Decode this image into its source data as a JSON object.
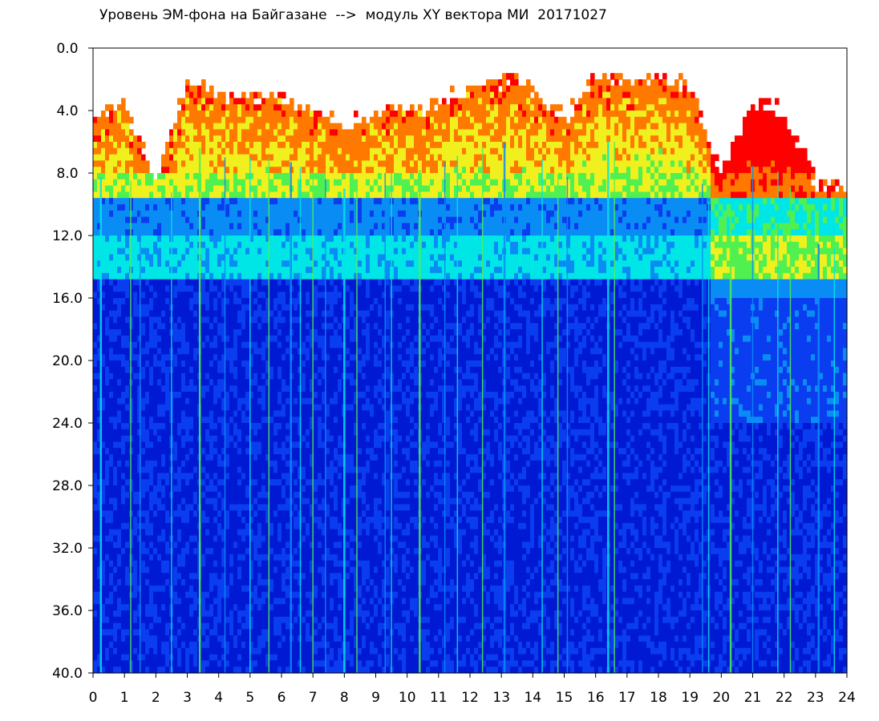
{
  "chart_data": {
    "type": "heatmap",
    "title": "Уровень ЭМ-фона на Байгазане  -->  модуль XY вектора МИ  20171027",
    "xlabel": "",
    "ylabel": "",
    "x_ticks": [
      "0",
      "1",
      "2",
      "3",
      "4",
      "5",
      "6",
      "7",
      "8",
      "9",
      "10",
      "11",
      "12",
      "13",
      "14",
      "15",
      "16",
      "17",
      "18",
      "19",
      "20",
      "21",
      "22",
      "23",
      "24"
    ],
    "y_ticks": [
      "0.0",
      "4.0",
      "8.0",
      "12.0",
      "16.0",
      "20.0",
      "24.0",
      "28.0",
      "32.0",
      "36.0",
      "40.0"
    ],
    "xlim": [
      0,
      24
    ],
    "ylim": [
      0,
      40
    ],
    "y_axis_inverted": true,
    "grid": false,
    "colormap": [
      "#0019d2",
      "#0a3cf0",
      "#0a8cf5",
      "#00e6e6",
      "#50f050",
      "#f0f01e",
      "#ff7800",
      "#ff0000"
    ],
    "upper_edge_by_hour": [
      {
        "x": 0,
        "y": 4.5
      },
      {
        "x": 1,
        "y": 3.5
      },
      {
        "x": 2,
        "y": 8.5
      },
      {
        "x": 3,
        "y": 2.0
      },
      {
        "x": 4,
        "y": 3.0
      },
      {
        "x": 5,
        "y": 3.0
      },
      {
        "x": 6,
        "y": 3.0
      },
      {
        "x": 7,
        "y": 4.0
      },
      {
        "x": 8,
        "y": 5.0
      },
      {
        "x": 9,
        "y": 4.0
      },
      {
        "x": 10,
        "y": 4.0
      },
      {
        "x": 11,
        "y": 3.5
      },
      {
        "x": 12,
        "y": 2.5
      },
      {
        "x": 13,
        "y": 2.0
      },
      {
        "x": 14,
        "y": 2.5
      },
      {
        "x": 15,
        "y": 4.5
      },
      {
        "x": 16,
        "y": 2.0
      },
      {
        "x": 17,
        "y": 2.0
      },
      {
        "x": 18,
        "y": 2.0
      },
      {
        "x": 19,
        "y": 2.5
      },
      {
        "x": 20,
        "y": 8.0
      },
      {
        "x": 21,
        "y": 3.5
      },
      {
        "x": 22,
        "y": 4.0
      },
      {
        "x": 23,
        "y": 8.5
      },
      {
        "x": 24,
        "y": 9.0
      }
    ]
  }
}
